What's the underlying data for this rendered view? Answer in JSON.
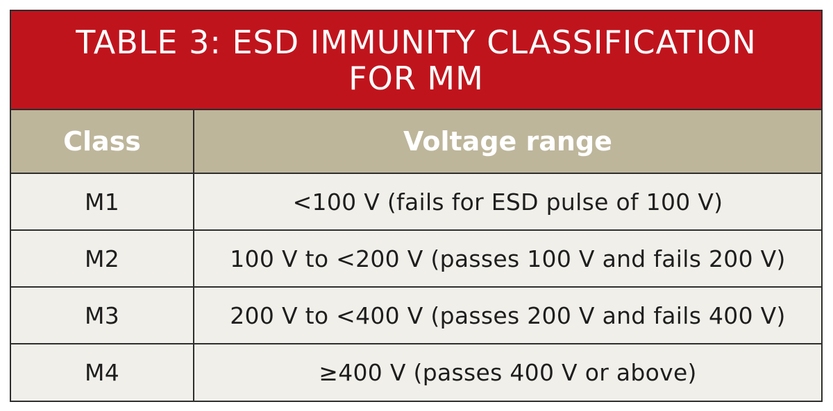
{
  "table": {
    "title": "TABLE 3: ESD IMMUNITY CLASSIFICATION FOR MM",
    "headers": {
      "class": "Class",
      "voltage": "Voltage range"
    },
    "rows": [
      {
        "class": "M1",
        "voltage": "<100 V (fails for ESD pulse of 100 V)"
      },
      {
        "class": "M2",
        "voltage": "100 V to <200 V (passes 100 V and fails 200 V)"
      },
      {
        "class": "M3",
        "voltage": "200 V to <400 V (passes 200 V and fails 400 V)"
      },
      {
        "class": "M4",
        "voltage": "≥400 V (passes 400 V or above)"
      }
    ]
  },
  "colors": {
    "title_band": "#c0141d",
    "header_band": "#beb69b",
    "body_background": "#f1efe9",
    "border": "#2e2e2e"
  }
}
